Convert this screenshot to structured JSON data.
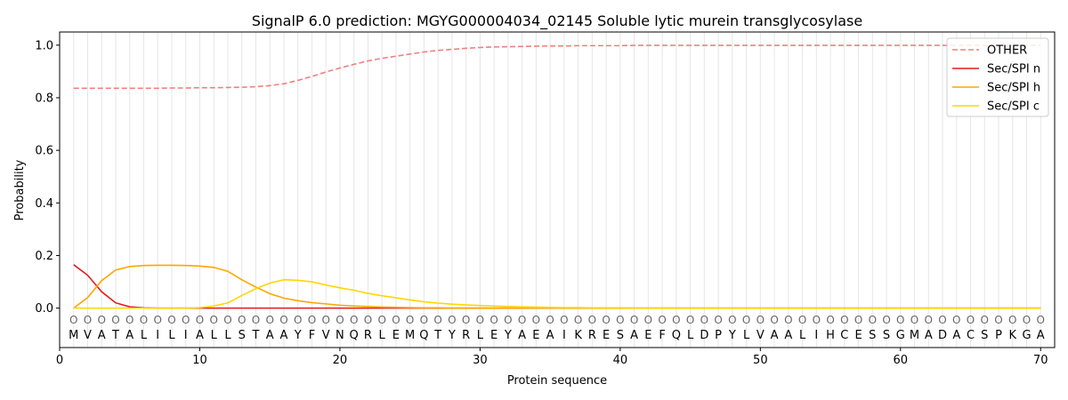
{
  "chart_data": {
    "type": "line",
    "title": "SignalP 6.0 prediction: MGYG000004034_02145 Soluble lytic murein transglycosylase",
    "xlabel": "Protein sequence",
    "ylabel": "Probability",
    "xlim": [
      0,
      71
    ],
    "ylim": [
      -0.15,
      1.05
    ],
    "x_ticks": [
      0,
      10,
      20,
      30,
      40,
      50,
      60,
      70
    ],
    "y_ticks": [
      0.0,
      0.2,
      0.4,
      0.6,
      0.8,
      1.0
    ],
    "y_tick_labels": [
      "0.0",
      "0.2",
      "0.4",
      "0.6",
      "0.8",
      "1.0"
    ],
    "grid": "vertical lines at each residue",
    "legend_position": "top-right",
    "sequence": [
      "M",
      "V",
      "A",
      "T",
      "A",
      "L",
      "I",
      "L",
      "I",
      "A",
      "L",
      "L",
      "S",
      "T",
      "A",
      "A",
      "Y",
      "F",
      "V",
      "N",
      "Q",
      "R",
      "L",
      "E",
      "M",
      "Q",
      "T",
      "Y",
      "R",
      "L",
      "E",
      "Y",
      "A",
      "E",
      "A",
      "I",
      "K",
      "R",
      "E",
      "S",
      "A",
      "E",
      "F",
      "Q",
      "L",
      "D",
      "P",
      "Y",
      "L",
      "V",
      "A",
      "A",
      "L",
      "I",
      "H",
      "C",
      "E",
      "S",
      "S",
      "G",
      "M",
      "A",
      "D",
      "A",
      "C",
      "S",
      "P",
      "K",
      "G",
      "A"
    ],
    "region_marker": "O",
    "series": [
      {
        "name": "OTHER",
        "color": "#f08080",
        "dashed": true,
        "values": [
          0.836,
          0.836,
          0.836,
          0.836,
          0.836,
          0.836,
          0.836,
          0.837,
          0.837,
          0.838,
          0.838,
          0.839,
          0.84,
          0.842,
          0.846,
          0.853,
          0.866,
          0.881,
          0.898,
          0.913,
          0.927,
          0.94,
          0.95,
          0.958,
          0.966,
          0.974,
          0.98,
          0.984,
          0.988,
          0.991,
          0.993,
          0.994,
          0.995,
          0.996,
          0.997,
          0.997,
          0.998,
          0.998,
          0.998,
          0.998,
          0.999,
          0.999,
          0.999,
          0.999,
          0.999,
          0.999,
          0.999,
          0.999,
          0.999,
          0.999,
          0.999,
          0.999,
          0.999,
          0.999,
          0.999,
          0.999,
          0.999,
          0.999,
          0.999,
          0.999,
          0.999,
          0.999,
          0.999,
          0.999,
          0.999,
          0.999,
          0.999,
          0.999,
          0.999,
          0.999
        ]
      },
      {
        "name": "Sec/SPI n",
        "color": "#e31a1c",
        "dashed": false,
        "values": [
          0.165,
          0.125,
          0.062,
          0.02,
          0.005,
          0.001,
          0,
          0,
          0,
          0,
          0,
          0,
          0,
          0,
          0,
          0,
          0,
          0,
          0,
          0,
          0,
          0,
          0,
          0,
          0,
          0,
          0,
          0,
          0,
          0,
          0,
          0,
          0,
          0,
          0,
          0,
          0,
          0,
          0,
          0,
          0,
          0,
          0,
          0,
          0,
          0,
          0,
          0,
          0,
          0,
          0,
          0,
          0,
          0,
          0,
          0,
          0,
          0,
          0,
          0,
          0,
          0,
          0,
          0,
          0,
          0,
          0,
          0,
          0,
          0
        ]
      },
      {
        "name": "Sec/SPI h",
        "color": "#ffa500",
        "dashed": false,
        "values": [
          0.0,
          0.04,
          0.105,
          0.145,
          0.158,
          0.162,
          0.163,
          0.163,
          0.162,
          0.16,
          0.155,
          0.14,
          0.108,
          0.08,
          0.055,
          0.038,
          0.028,
          0.021,
          0.016,
          0.011,
          0.008,
          0.006,
          0.004,
          0.003,
          0.002,
          0.001,
          0.001,
          0,
          0,
          0,
          0,
          0,
          0,
          0,
          0,
          0,
          0,
          0,
          0,
          0,
          0,
          0,
          0,
          0,
          0,
          0,
          0,
          0,
          0,
          0,
          0,
          0,
          0,
          0,
          0,
          0,
          0,
          0,
          0,
          0,
          0,
          0,
          0,
          0,
          0,
          0,
          0,
          0,
          0,
          0
        ]
      },
      {
        "name": "Sec/SPI c",
        "color": "#ffd700",
        "dashed": false,
        "values": [
          0,
          0,
          0,
          0,
          0,
          0,
          0,
          0,
          0,
          0.002,
          0.008,
          0.02,
          0.048,
          0.074,
          0.095,
          0.108,
          0.106,
          0.1,
          0.088,
          0.077,
          0.068,
          0.056,
          0.047,
          0.039,
          0.031,
          0.024,
          0.019,
          0.015,
          0.012,
          0.01,
          0.008,
          0.006,
          0.005,
          0.004,
          0.003,
          0.002,
          0.002,
          0.001,
          0.001,
          0.001,
          0,
          0,
          0,
          0,
          0,
          0,
          0,
          0,
          0,
          0,
          0,
          0,
          0,
          0,
          0,
          0,
          0,
          0,
          0,
          0,
          0,
          0,
          0,
          0,
          0,
          0,
          0,
          0,
          0,
          0
        ]
      }
    ]
  }
}
